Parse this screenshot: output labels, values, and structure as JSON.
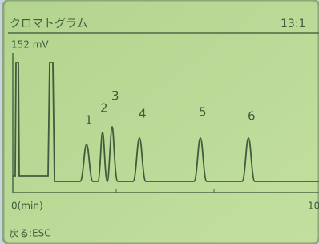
{
  "screen": {
    "title": "クロマトグラム",
    "time": "13:1",
    "y_label": "152 mV",
    "x_start": "0(min)",
    "x_end": "10",
    "footer": "戻る:ESC"
  },
  "peaks": [
    {
      "label": "1"
    },
    {
      "label": "2"
    },
    {
      "label": "3"
    },
    {
      "label": "4"
    },
    {
      "label": "5"
    },
    {
      "label": "6"
    }
  ]
}
